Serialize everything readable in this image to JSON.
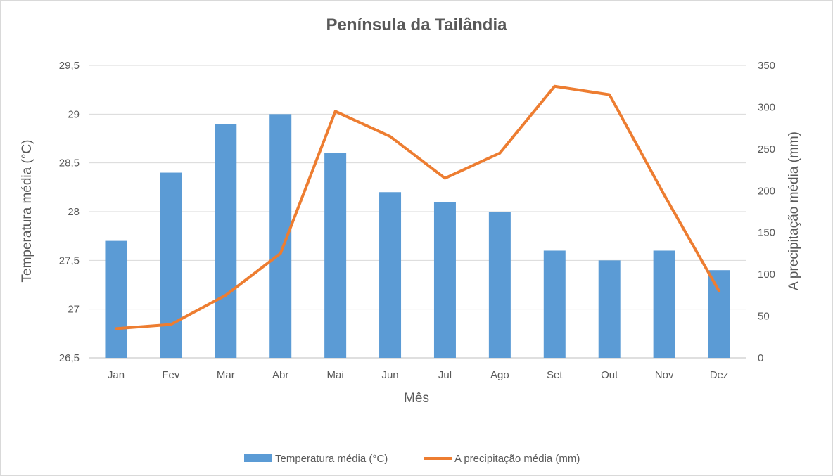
{
  "chart_data": {
    "type": "bar",
    "title": "Península da Tailândia",
    "xlabel": "Mês",
    "ylabel": "Temperatura média (°C)",
    "y2label": "A precipitação média (mm)",
    "categories": [
      "Jan",
      "Fev",
      "Mar",
      "Abr",
      "Mai",
      "Jun",
      "Jul",
      "Ago",
      "Set",
      "Out",
      "Nov",
      "Dez"
    ],
    "series": [
      {
        "name": "Temperatura média (°C)",
        "type": "bar",
        "axis": "left",
        "color": "#5b9bd5",
        "values": [
          27.7,
          28.4,
          28.9,
          29.0,
          28.6,
          28.2,
          28.1,
          28.0,
          27.6,
          27.5,
          27.6,
          27.4
        ]
      },
      {
        "name": "A precipitação média (mm)",
        "type": "line",
        "axis": "right",
        "color": "#ed7d31",
        "values": [
          35,
          40,
          75,
          125,
          295,
          265,
          215,
          245,
          325,
          315,
          195,
          80
        ]
      }
    ],
    "ylim": [
      26.5,
      29.5
    ],
    "yticks": [
      "26,5",
      "27",
      "27,5",
      "28",
      "28,5",
      "29",
      "29,5"
    ],
    "y2lim": [
      0,
      350
    ],
    "y2ticks": [
      "0",
      "50",
      "100",
      "150",
      "200",
      "250",
      "300",
      "350"
    ],
    "grid": true,
    "legend_position": "bottom"
  }
}
